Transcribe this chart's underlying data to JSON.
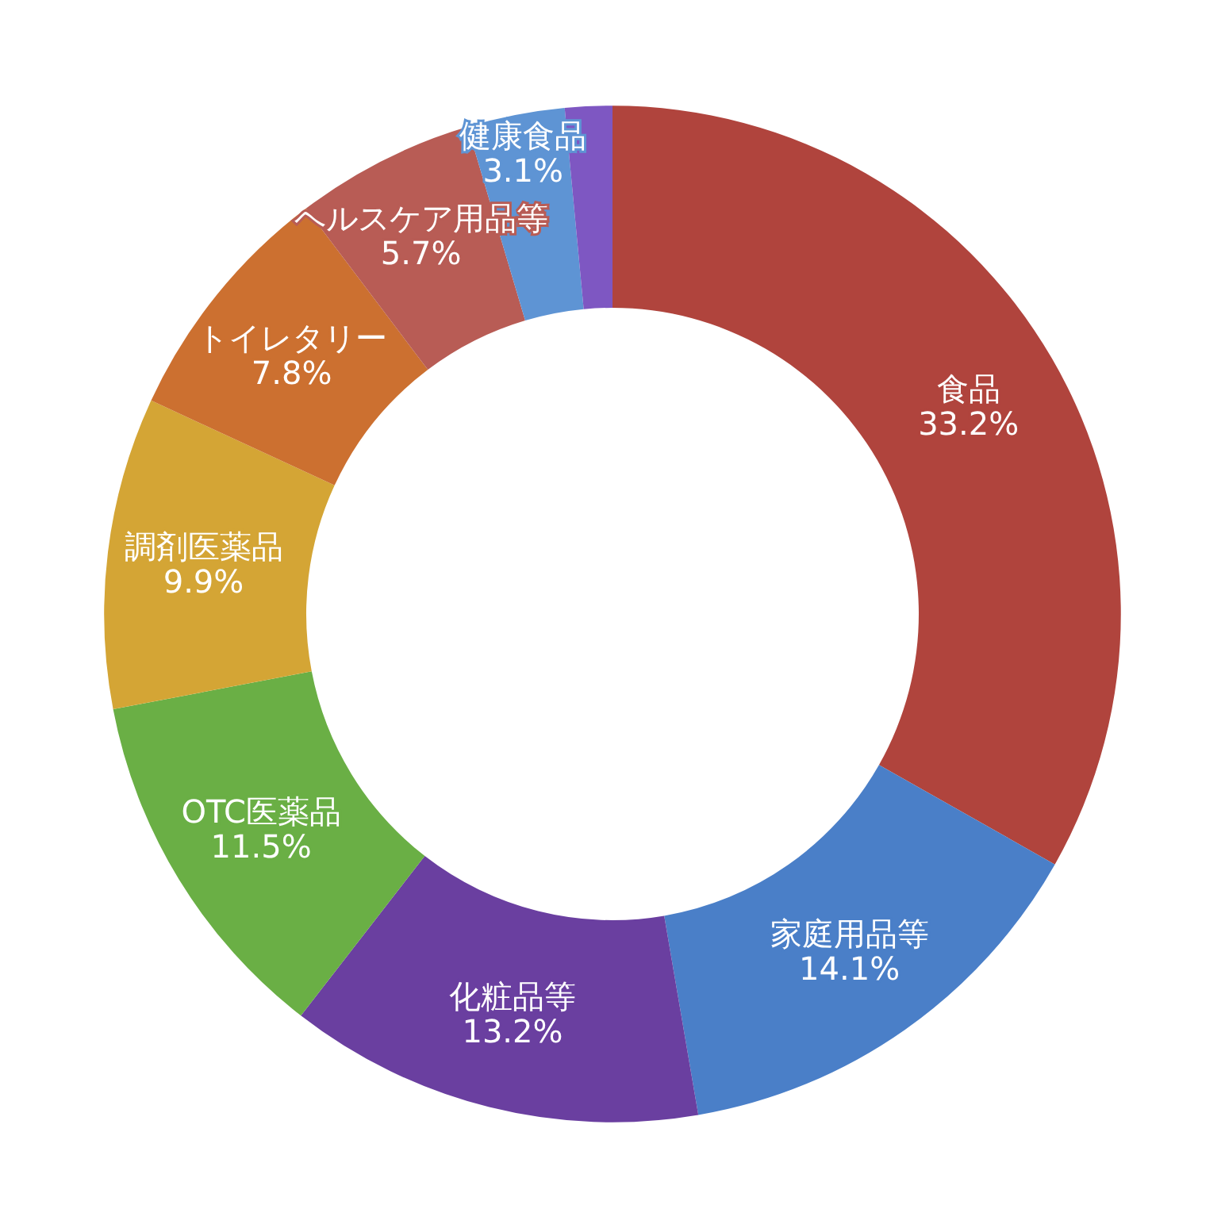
{
  "chart_data": {
    "type": "donut",
    "categories": [
      "食品",
      "家庭用品等",
      "化粧品等",
      "OTC医薬品",
      "調剤医薬品",
      "トイレタリー",
      "ヘルスケア用品等",
      "健康食品",
      null
    ],
    "values": [
      33.2,
      14.1,
      13.2,
      11.5,
      9.9,
      7.8,
      5.7,
      3.1,
      1.5
    ],
    "value_labels": [
      "33.2%",
      "14.1%",
      "13.2%",
      "11.5%",
      "9.9%",
      "7.8%",
      "5.7%",
      "3.1%",
      null
    ],
    "colors": [
      "#b0443d",
      "#4a7fc8",
      "#6a3fa0",
      "#6aaf45",
      "#d4a535",
      "#cc7030",
      "#b85c55",
      "#5e94d4",
      "#7e57c2"
    ],
    "legend": false
  }
}
